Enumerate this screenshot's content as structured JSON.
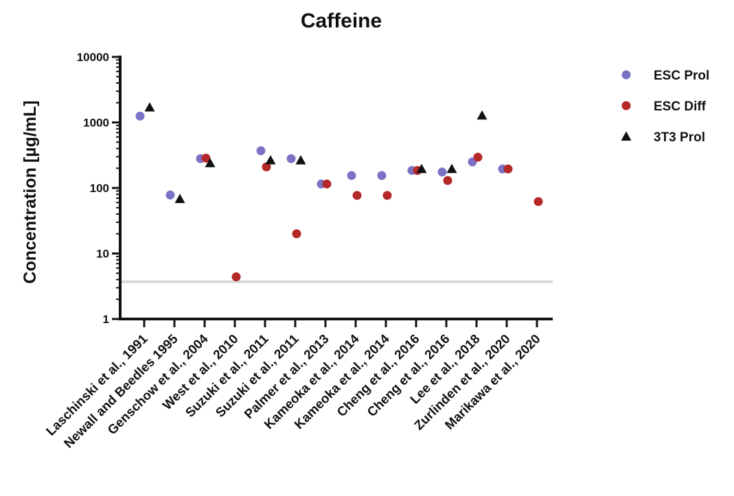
{
  "chart_data": {
    "type": "scatter",
    "title": "Caffeine",
    "ylabel": "Concentration [µg/mL]",
    "xlabel": "",
    "yscale": "log",
    "ylim": [
      1,
      10000
    ],
    "y_ticks": [
      "1",
      "10",
      "100",
      "1000",
      "10000"
    ],
    "categories": [
      "Laschinski et al., 1991",
      "Newall and Beedles 1995",
      "Genschow et al., 2004",
      "West et al., 2010",
      "Suzuki et al., 2011",
      "Suzuki et al., 2011",
      "Palmer et al., 2013",
      "Kameoka et al., 2014",
      "Kameoka et al., 2014",
      "Cheng et al., 2016",
      "Cheng et al., 2016",
      "Lee et al., 2018",
      "Zurlinden et al., 2020",
      "Marikawa et al., 2020"
    ],
    "series": [
      {
        "name": "ESC Prol",
        "color": "#7b72c6",
        "marker": "circle",
        "values": [
          1250,
          78,
          280,
          null,
          370,
          280,
          115,
          155,
          155,
          185,
          175,
          250,
          195,
          null
        ]
      },
      {
        "name": "ESC Diff",
        "color": "#b52828",
        "marker": "circle",
        "values": [
          null,
          null,
          285,
          4.4,
          210,
          20,
          115,
          77,
          77,
          185,
          130,
          295,
          195,
          62
        ]
      },
      {
        "name": "3T3 Prol",
        "color": "#111111",
        "marker": "triangle",
        "values": [
          1700,
          68,
          240,
          null,
          265,
          265,
          null,
          null,
          null,
          195,
          195,
          1280,
          null,
          null
        ]
      }
    ],
    "reference_line": {
      "value": 3.7,
      "color": "#d9d9d9"
    },
    "grid": false,
    "legend_position": "right"
  }
}
